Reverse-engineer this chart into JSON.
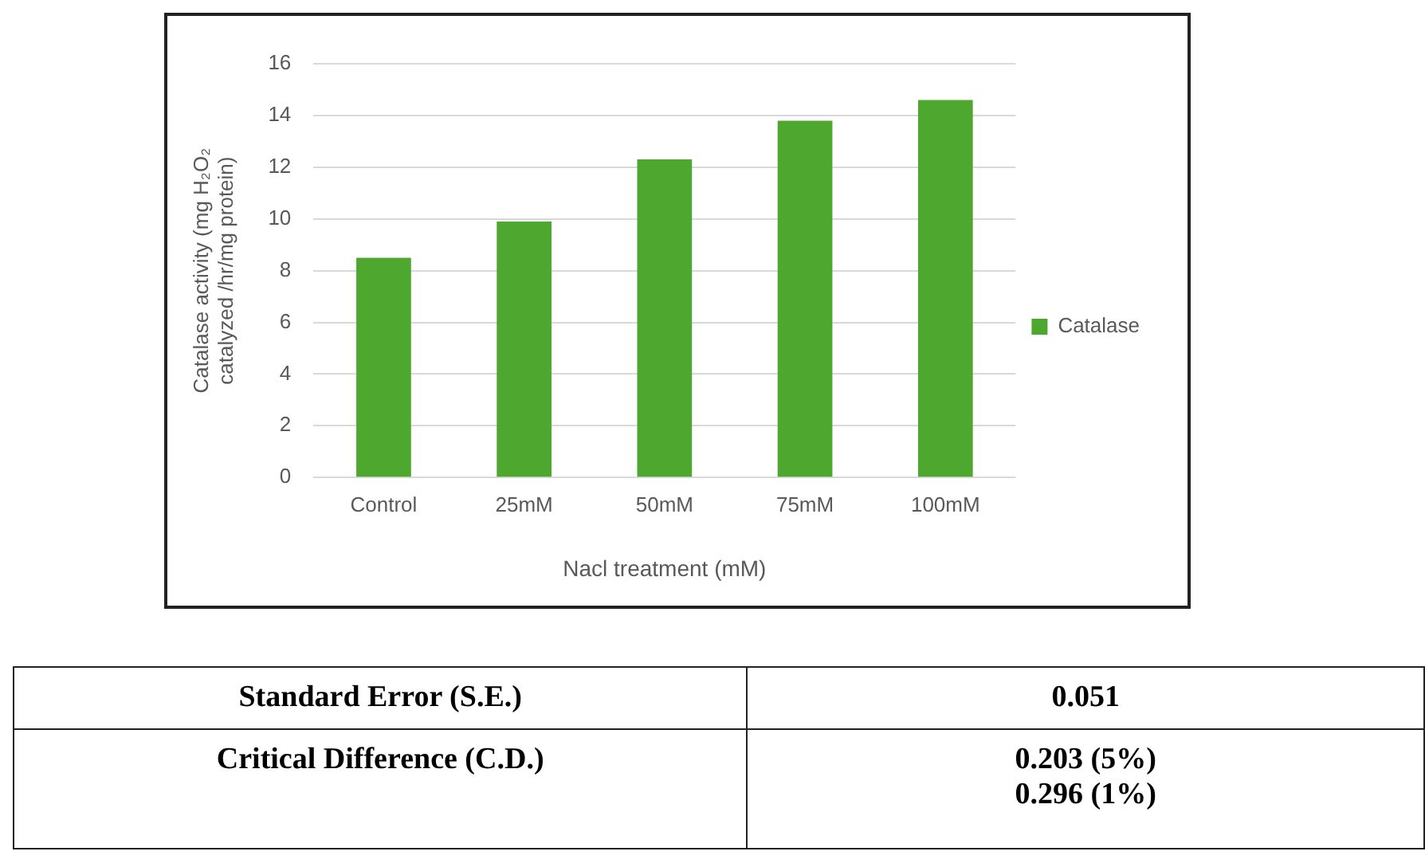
{
  "chart_data": {
    "type": "bar",
    "xlabel": "Nacl treatment (mM)",
    "ylabel": "Catalase activity (mg H₂O₂ catalyzed /hr/mg protein)",
    "categories": [
      "Control",
      "25mM",
      "50mM",
      "75mM",
      "100mM"
    ],
    "series": [
      {
        "name": "Catalase",
        "color": "#4ea72e",
        "values": [
          8.5,
          9.9,
          12.3,
          13.8,
          14.6
        ]
      }
    ],
    "ylim": [
      0,
      16
    ],
    "yticks": [
      0,
      2,
      4,
      6,
      8,
      10,
      12,
      14,
      16
    ],
    "grid": "y",
    "legend": "right",
    "annotations": [
      "Standard Error (S.E.)",
      "0.051",
      "Critical Difference (C.D.)",
      "0.203 (5%)",
      "0.296 (1%)"
    ]
  }
}
